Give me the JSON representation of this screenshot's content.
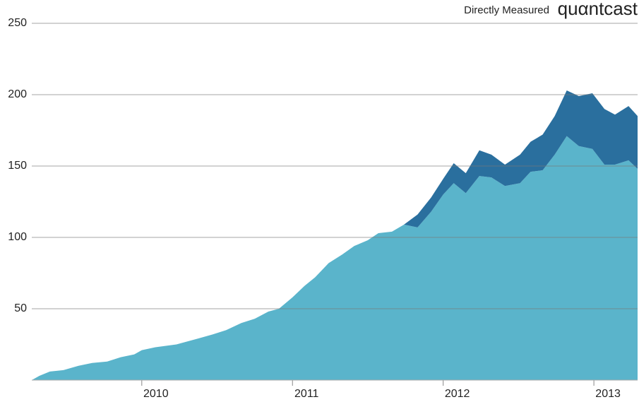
{
  "chart_data": {
    "type": "stacked_area",
    "source_label": "Directly Measured",
    "brand": "quαntcast",
    "x": [
      2009.27,
      2009.32,
      2009.39,
      2009.48,
      2009.58,
      2009.67,
      2009.77,
      2009.86,
      2009.95,
      2010.0,
      2010.09,
      2010.23,
      2010.37,
      2010.47,
      2010.56,
      2010.66,
      2010.75,
      2010.84,
      2010.91,
      2011.0,
      2011.08,
      2011.15,
      2011.24,
      2011.33,
      2011.41,
      2011.5,
      2011.57,
      2011.66,
      2011.74,
      2011.83,
      2011.92,
      2012.0,
      2012.07,
      2012.15,
      2012.24,
      2012.32,
      2012.41,
      2012.51,
      2012.58,
      2012.66,
      2012.74,
      2012.82,
      2012.9,
      2012.99,
      2013.07,
      2013.14,
      2013.23,
      2013.29
    ],
    "series": [
      {
        "color": "#5ab4cb",
        "values": [
          0,
          3,
          6,
          7,
          10,
          12,
          13,
          16,
          18,
          21,
          23,
          25,
          29,
          32,
          35,
          40,
          43,
          48,
          50,
          58,
          66,
          72,
          82,
          88,
          94,
          98,
          103,
          104,
          109,
          107,
          118,
          130,
          138,
          131,
          143,
          142,
          136,
          138,
          146,
          147,
          158,
          171,
          164,
          162,
          151,
          151,
          154,
          148
        ]
      },
      {
        "color": "#2a6f9e",
        "values": [
          0,
          0,
          0,
          0,
          0,
          0,
          0,
          0,
          0,
          0,
          0,
          0,
          0,
          0,
          0,
          0,
          0,
          0,
          0,
          0,
          0,
          0,
          0,
          0,
          0,
          0,
          0,
          0,
          0,
          9,
          10,
          11,
          14,
          14,
          18,
          16,
          15,
          20,
          21,
          25,
          27,
          32,
          35,
          39,
          39,
          35,
          38,
          37
        ]
      }
    ],
    "xlim": [
      2009.27,
      2013.29
    ],
    "xticks": [
      2010,
      2011,
      2012,
      2013
    ],
    "ylim": [
      0,
      250
    ],
    "yticks": [
      50,
      100,
      150,
      200,
      250
    ],
    "grid": true
  }
}
